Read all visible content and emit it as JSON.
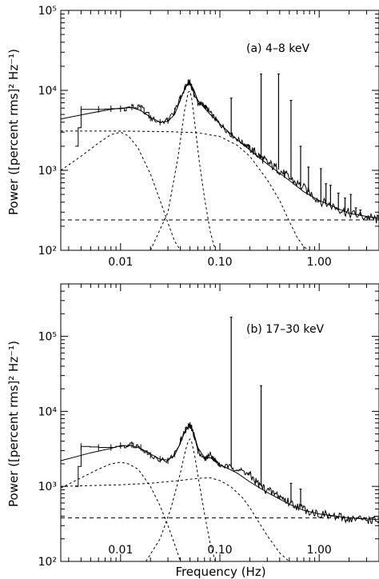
{
  "chart_data": [
    {
      "type": "line",
      "panel_label": "(a)  4–8  keV",
      "ylabel": "Power ([percent rms]² Hz⁻¹)",
      "xlabel": "",
      "xscale": "log",
      "yscale": "log",
      "xlim": [
        0.0025,
        4.0
      ],
      "ylim": [
        100,
        100000
      ],
      "x_ticks": [
        0.01,
        0.1,
        1.0
      ],
      "x_tick_labels": [
        "0.01",
        "0.10",
        "1.00"
      ],
      "y_ticks": [
        100,
        1000,
        10000,
        100000
      ],
      "y_tick_labels": [
        "10²",
        "10³",
        "10⁴",
        "10⁵"
      ],
      "continuum_x": [
        0.0035,
        0.004,
        0.006,
        0.008,
        0.01,
        0.013,
        0.016,
        0.02,
        0.025,
        0.03,
        0.035,
        0.04,
        0.045,
        0.048,
        0.05,
        0.052,
        0.055,
        0.06,
        0.07,
        0.08,
        0.1,
        0.13,
        0.17,
        0.2,
        0.25,
        0.3,
        0.4,
        0.5,
        0.7,
        1.0,
        1.5,
        2.0,
        3.0,
        4.0
      ],
      "continuum_y": [
        2000,
        5800,
        5800,
        5900,
        5900,
        6200,
        6000,
        4500,
        4000,
        4200,
        5500,
        8000,
        11000,
        12500,
        12500,
        11000,
        9000,
        7000,
        6500,
        5200,
        3800,
        2800,
        2200,
        1900,
        1500,
        1250,
        1000,
        800,
        600,
        420,
        340,
        290,
        260,
        240
      ],
      "model_x": [
        0.0025,
        0.005,
        0.008,
        0.01,
        0.013,
        0.016,
        0.02,
        0.025,
        0.03,
        0.035,
        0.04,
        0.045,
        0.05,
        0.055,
        0.06,
        0.07,
        0.08,
        0.1,
        0.15,
        0.2,
        0.3,
        0.5,
        0.7,
        1.0,
        2.0,
        4.0
      ],
      "model_y": [
        4400,
        5200,
        5800,
        6000,
        6100,
        5600,
        4600,
        4000,
        4100,
        5000,
        7600,
        11000,
        12500,
        10000,
        7500,
        6000,
        5000,
        3800,
        2400,
        1800,
        1200,
        750,
        540,
        420,
        290,
        250
      ],
      "components": [
        {
          "x": [
            0.0025,
            0.004,
            0.006,
            0.008,
            0.01,
            0.012,
            0.015,
            0.02,
            0.025,
            0.03,
            0.035,
            0.04
          ],
          "y": [
            1000,
            1500,
            2200,
            2800,
            3000,
            2700,
            1900,
            900,
            420,
            220,
            130,
            100
          ]
        },
        {
          "x": [
            0.02,
            0.03,
            0.038,
            0.044,
            0.048,
            0.05,
            0.052,
            0.056,
            0.062,
            0.07,
            0.08,
            0.09
          ],
          "y": [
            100,
            300,
            1500,
            5500,
            9500,
            9800,
            8000,
            3800,
            1300,
            450,
            170,
            100
          ]
        },
        {
          "x": [
            0.0025,
            0.01,
            0.03,
            0.06,
            0.1,
            0.15,
            0.2,
            0.3,
            0.4,
            0.5,
            0.6,
            0.7,
            0.8
          ],
          "y": [
            3100,
            3100,
            3050,
            2950,
            2650,
            2050,
            1500,
            760,
            420,
            230,
            145,
            110,
            100
          ]
        },
        {
          "x": [
            0.0025,
            4.0
          ],
          "y": [
            240,
            240
          ],
          "style": "constant"
        }
      ],
      "peaks": [
        {
          "x": 0.13,
          "y": 8000
        },
        {
          "x": 0.26,
          "y": 16000
        },
        {
          "x": 0.39,
          "y": 16000
        },
        {
          "x": 0.52,
          "y": 7500
        },
        {
          "x": 0.65,
          "y": 2000
        },
        {
          "x": 0.78,
          "y": 1100
        },
        {
          "x": 1.04,
          "y": 1050
        },
        {
          "x": 1.17,
          "y": 680
        },
        {
          "x": 1.3,
          "y": 650
        },
        {
          "x": 1.56,
          "y": 520
        },
        {
          "x": 1.82,
          "y": 450
        },
        {
          "x": 2.08,
          "y": 500
        },
        {
          "x": 2.34,
          "y": 340
        },
        {
          "x": 2.6,
          "y": 320
        }
      ]
    },
    {
      "type": "line",
      "panel_label": "(b)  17–30  keV",
      "ylabel": "Power ([percent rms]² Hz⁻¹)",
      "xlabel": "Frequency (Hz)",
      "xscale": "log",
      "yscale": "log",
      "xlim": [
        0.0025,
        4.0
      ],
      "ylim": [
        100,
        500000
      ],
      "x_ticks": [
        0.01,
        0.1,
        1.0
      ],
      "x_tick_labels": [
        "0.01",
        "0.10",
        "1.00"
      ],
      "y_ticks": [
        100,
        1000,
        10000,
        100000
      ],
      "y_tick_labels": [
        "10²",
        "10³",
        "10⁴",
        "10⁵"
      ],
      "continuum_x": [
        0.0035,
        0.004,
        0.006,
        0.008,
        0.01,
        0.013,
        0.016,
        0.02,
        0.025,
        0.03,
        0.035,
        0.04,
        0.045,
        0.048,
        0.05,
        0.052,
        0.055,
        0.06,
        0.07,
        0.08,
        0.09,
        0.1,
        0.13,
        0.17,
        0.2,
        0.25,
        0.3,
        0.4,
        0.5,
        0.7,
        1.0,
        1.5,
        2.0,
        3.0,
        4.0
      ],
      "continuum_y": [
        1000,
        3400,
        3300,
        3300,
        3500,
        3600,
        3300,
        2600,
        2300,
        2200,
        2700,
        4000,
        5600,
        6300,
        6500,
        6000,
        4800,
        3000,
        2300,
        2700,
        2200,
        1900,
        1800,
        1600,
        1400,
        1050,
        880,
        740,
        610,
        500,
        430,
        390,
        370,
        360,
        350
      ],
      "model_x": [
        0.0025,
        0.005,
        0.008,
        0.01,
        0.013,
        0.016,
        0.02,
        0.025,
        0.03,
        0.035,
        0.04,
        0.045,
        0.05,
        0.055,
        0.06,
        0.07,
        0.08,
        0.09,
        0.1,
        0.15,
        0.2,
        0.3,
        0.5,
        0.7,
        1.0,
        2.0,
        4.0
      ],
      "model_y": [
        2200,
        2800,
        3200,
        3500,
        3500,
        3200,
        2700,
        2300,
        2250,
        2600,
        3800,
        5600,
        6300,
        5000,
        3300,
        2400,
        2400,
        2200,
        1950,
        1500,
        1150,
        830,
        580,
        480,
        430,
        380,
        360
      ],
      "components": [
        {
          "x": [
            0.0025,
            0.004,
            0.006,
            0.008,
            0.01,
            0.012,
            0.015,
            0.02,
            0.025,
            0.03,
            0.035,
            0.04
          ],
          "y": [
            950,
            1300,
            1700,
            2000,
            2100,
            2000,
            1700,
            1000,
            550,
            300,
            170,
            100
          ]
        },
        {
          "x": [
            0.018,
            0.025,
            0.032,
            0.04,
            0.045,
            0.048,
            0.05,
            0.052,
            0.056,
            0.062,
            0.07,
            0.08,
            0.09
          ],
          "y": [
            100,
            200,
            500,
            1500,
            3000,
            4000,
            4300,
            3900,
            2500,
            1100,
            430,
            170,
            100
          ]
        },
        {
          "x": [
            0.0025,
            0.01,
            0.02,
            0.04,
            0.06,
            0.08,
            0.1,
            0.13,
            0.17,
            0.2,
            0.3,
            0.4,
            0.5
          ],
          "y": [
            1000,
            1050,
            1100,
            1200,
            1280,
            1300,
            1200,
            980,
            700,
            520,
            220,
            130,
            100
          ]
        },
        {
          "x": [
            0.0025,
            4.0
          ],
          "y": [
            380,
            380
          ],
          "style": "constant"
        }
      ],
      "peaks": [
        {
          "x": 0.13,
          "y": 180000
        },
        {
          "x": 0.26,
          "y": 22000
        },
        {
          "x": 0.52,
          "y": 1100
        },
        {
          "x": 0.65,
          "y": 920
        }
      ]
    }
  ]
}
